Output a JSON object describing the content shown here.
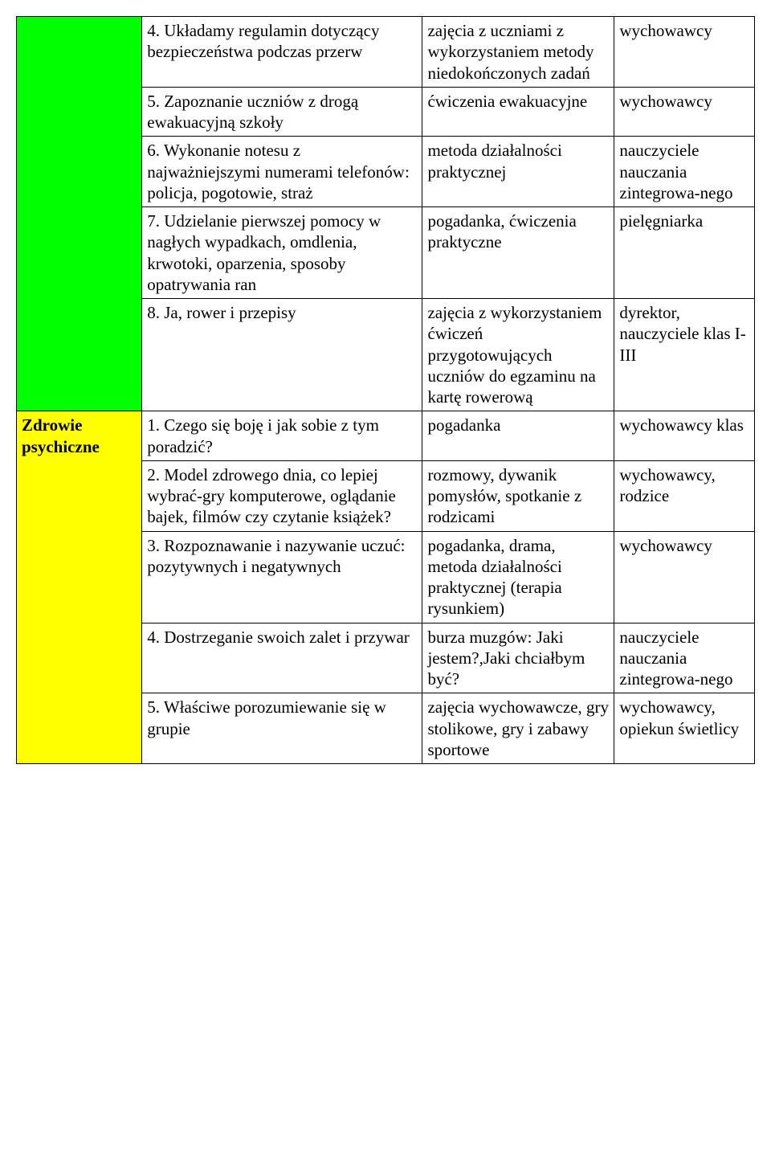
{
  "table": {
    "sections": [
      {
        "category": "",
        "category_bg": "#00ff00",
        "rows": [
          {
            "c2": "4. Układamy regulamin dotyczący bezpieczeństwa podczas przerw",
            "c3": "zajęcia z uczniami z wykorzystaniem metody niedokończonych zadań",
            "c4": "wychowawcy"
          },
          {
            "c2": "5. Zapoznanie uczniów z drogą ewakuacyjną szkoły",
            "c3": "ćwiczenia ewakuacyjne",
            "c4": "wychowawcy"
          },
          {
            "c2": "6. Wykonanie notesu z najważniejszymi numerami telefonów: policja, pogotowie, straż",
            "c3": "metoda działalności praktycznej",
            "c4": "nauczyciele nauczania zintegrowa-nego"
          },
          {
            "c2": "7. Udzielanie pierwszej pomocy w nagłych wypadkach, omdlenia, krwotoki, oparzenia, sposoby opatrywania ran",
            "c3": "pogadanka, ćwiczenia praktyczne",
            "c4": "pielęgniarka"
          },
          {
            "c2": "8. Ja, rower i przepisy",
            "c3": "zajęcia z wykorzystaniem ćwiczeń przygotowujących uczniów do egzaminu na kartę rowerową",
            "c4": "dyrektor, nauczyciele klas I-III"
          }
        ]
      },
      {
        "category": "Zdrowie psychiczne",
        "category_bg": "#ffff00",
        "rows": [
          {
            "c2": "1. Czego się boję i jak sobie z tym poradzić?",
            "c3": "pogadanka",
            "c4": "wychowawcy klas"
          },
          {
            "c2": "2. Model zdrowego dnia, co lepiej wybrać-gry komputerowe, oglądanie bajek, filmów czy czytanie książek?",
            "c3": "rozmowy, dywanik pomysłów, spotkanie z rodzicami",
            "c4": "wychowawcy, rodzice"
          },
          {
            "c2": "3. Rozpoznawanie i nazywanie uczuć: pozytywnych i negatywnych",
            "c3": "pogadanka, drama, metoda działalności praktycznej (terapia rysunkiem)",
            "c4": "wychowawcy"
          },
          {
            "c2": "4. Dostrzeganie swoich zalet i przywar",
            "c3": "burza muzgów: Jaki jestem?,Jaki chciałbym być?",
            "c4": "nauczyciele nauczania zintegrowa-nego"
          },
          {
            "c2": "5. Właściwe porozumiewanie się w grupie",
            "c3": "zajęcia wychowawcze, gry stolikowe, gry i zabawy sportowe",
            "c4": "wychowawcy, opiekun świetlicy"
          }
        ]
      }
    ]
  }
}
